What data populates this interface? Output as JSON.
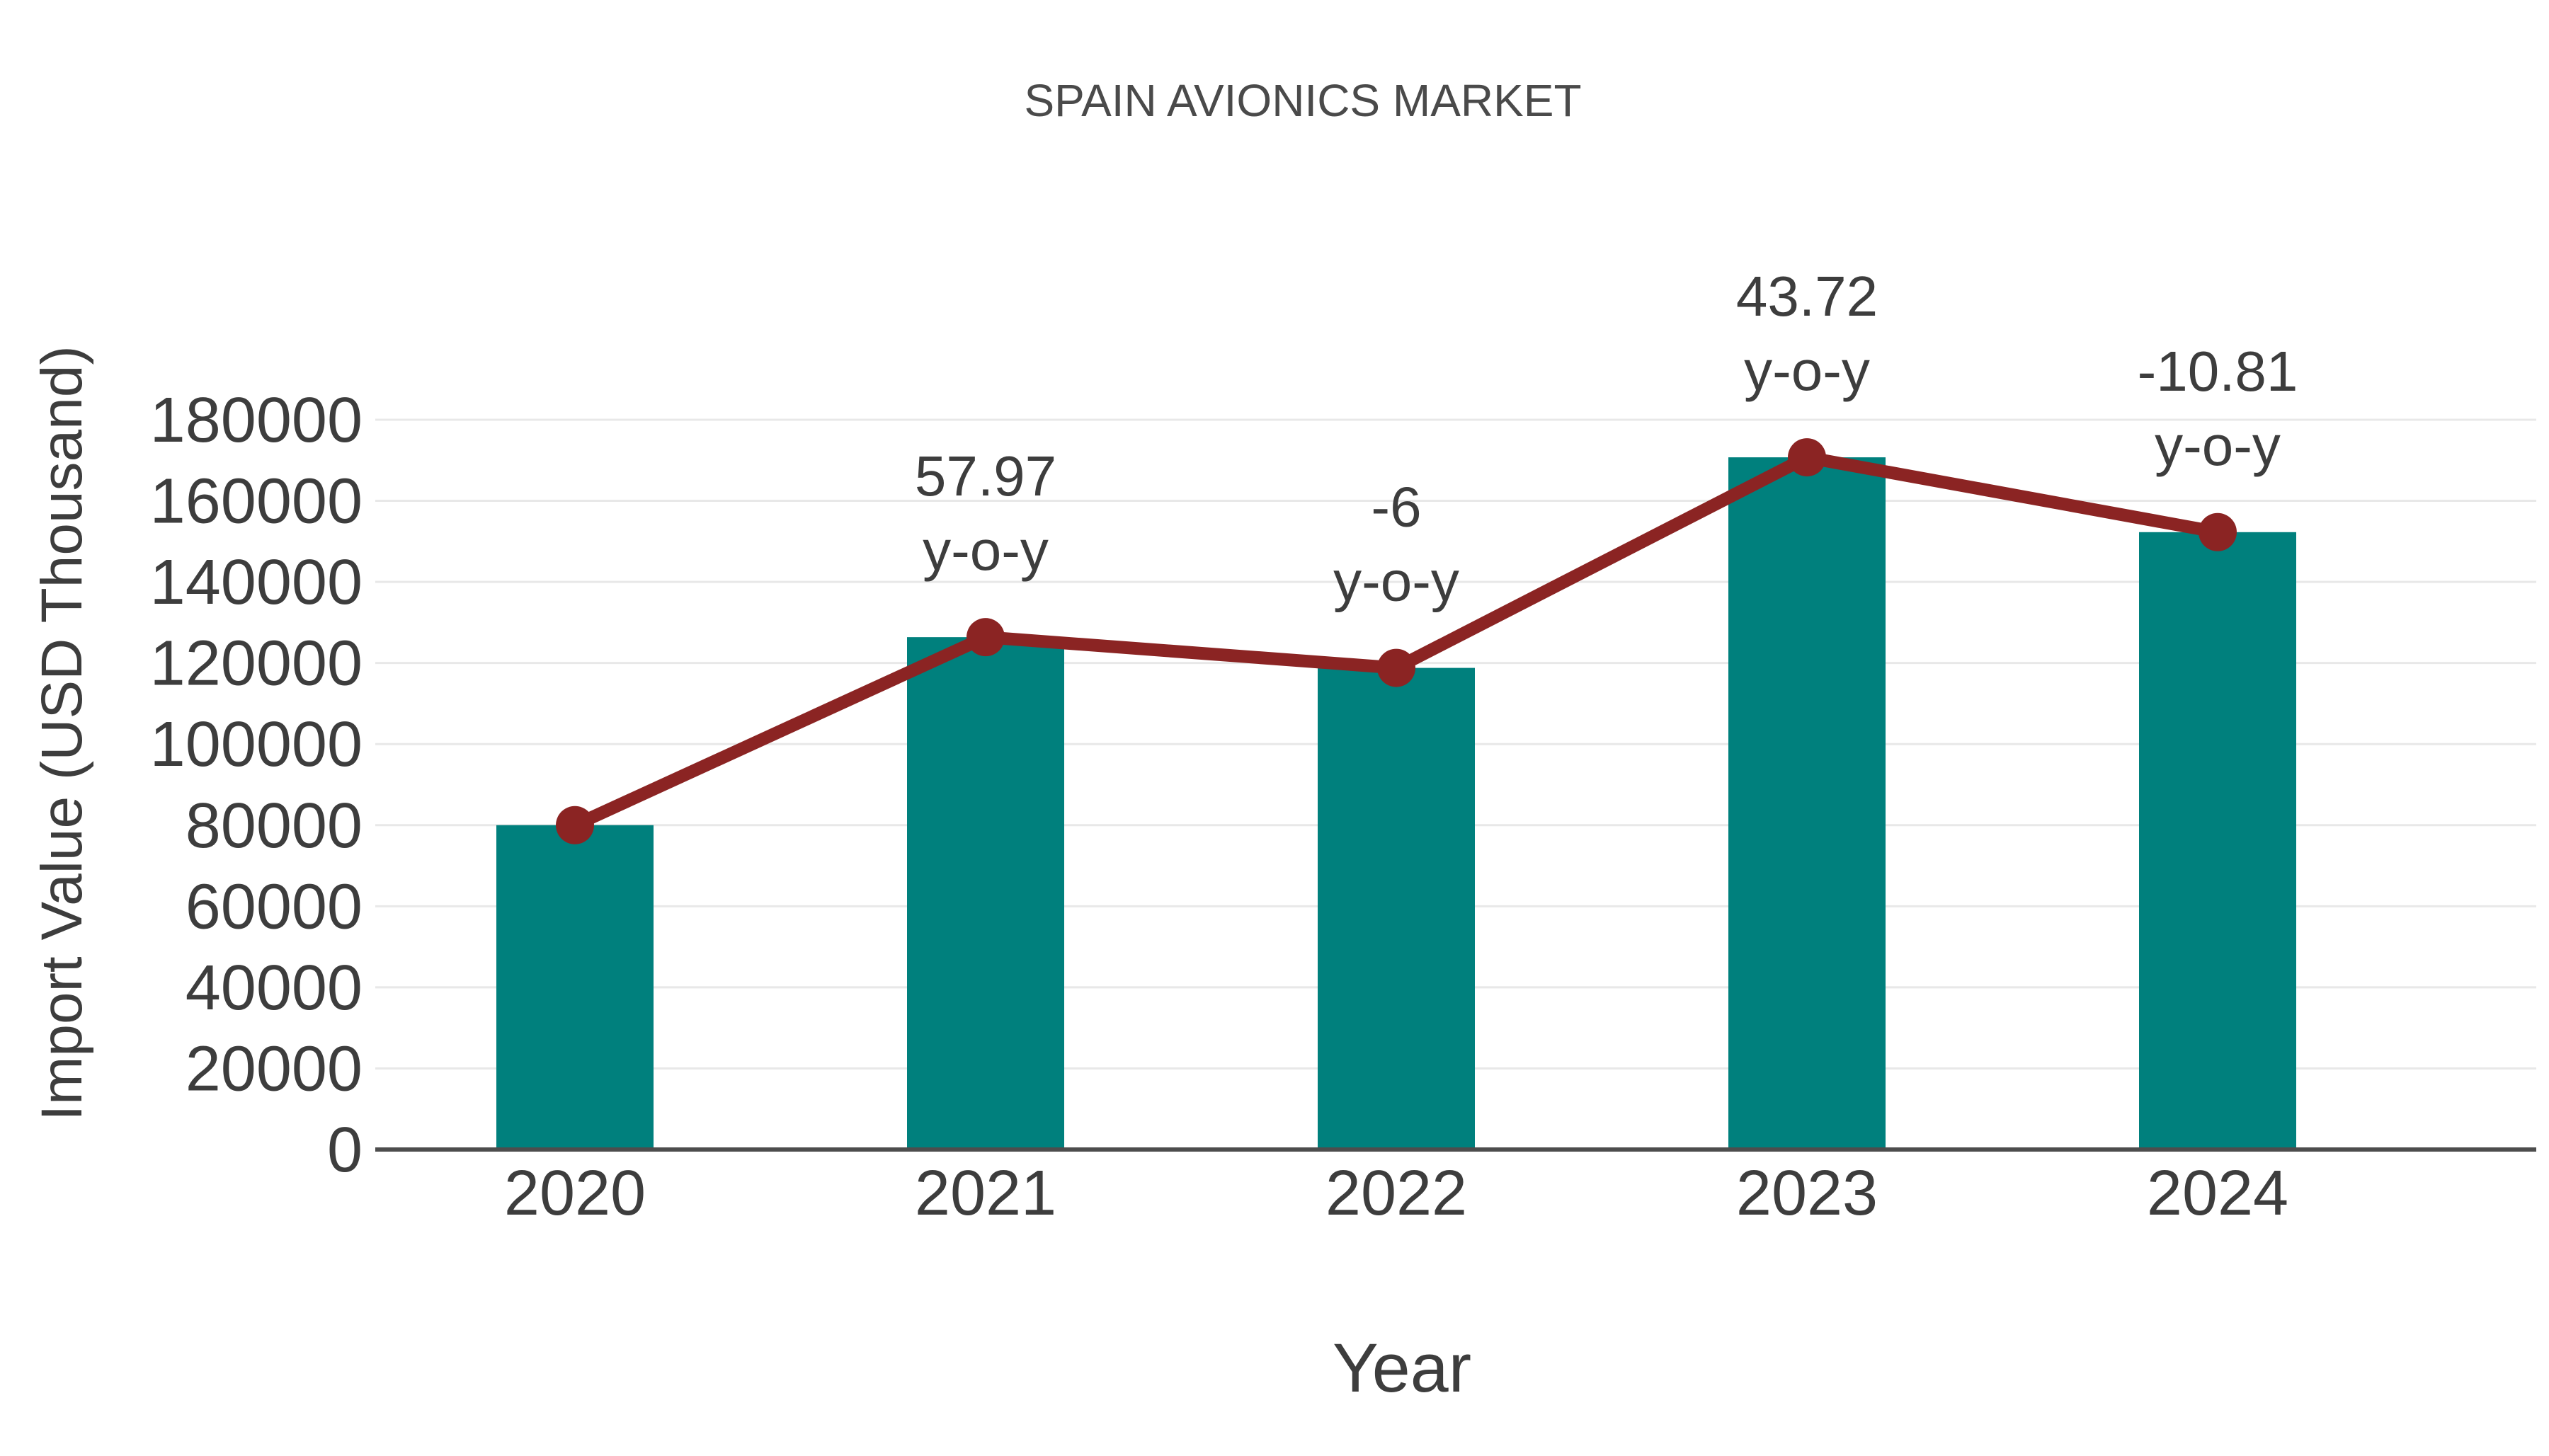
{
  "page": {
    "background": "#ffffff"
  },
  "chart_data": {
    "type": "bar",
    "title": "SPAIN AVIONICS MARKET",
    "xlabel": "Year",
    "ylabel": "Import Value (USD Thousand)",
    "categories": [
      "2020",
      "2021",
      "2022",
      "2023",
      "2024"
    ],
    "series": [
      {
        "name": "Import Value bars",
        "type": "bar",
        "color": "#00807d",
        "values": [
          80000,
          126376,
          118793,
          170731,
          152274
        ]
      },
      {
        "name": "Import Value trend line",
        "type": "line",
        "color": "#8b2423",
        "values": [
          80000,
          126376,
          118793,
          170731,
          152274
        ]
      }
    ],
    "annotations": [
      {
        "category": "2021",
        "value": 57.97,
        "lines": [
          "57.97",
          "y-o-y"
        ]
      },
      {
        "category": "2022",
        "value": -6,
        "lines": [
          "-6",
          "y-o-y"
        ]
      },
      {
        "category": "2023",
        "value": 43.72,
        "lines": [
          "43.72",
          "y-o-y"
        ]
      },
      {
        "category": "2024",
        "value": -10.81,
        "lines": [
          "-10.81",
          "y-o-y"
        ]
      }
    ],
    "ylim": [
      0,
      180000
    ],
    "ytick_step": 20000,
    "yticks": [
      0,
      20000,
      40000,
      60000,
      80000,
      100000,
      120000,
      140000,
      160000,
      180000
    ],
    "grid": true,
    "legend_visible": false,
    "colors": {
      "grid": "#e8e8e8",
      "axis": "#4d4d4d",
      "tick_text": "#3d3d3d",
      "title_text": "#4a4a4a",
      "annotation_text": "#3d3d3d"
    }
  }
}
